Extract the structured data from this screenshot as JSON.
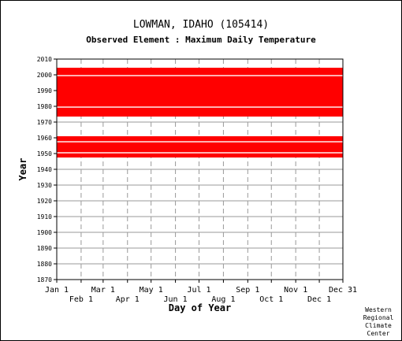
{
  "chart_data": {
    "type": "heatmap",
    "title": "LOWMAN, IDAHO   (105414)",
    "subtitle": "Observed Element : Maximum Daily Temperature",
    "xlabel": "Day of Year",
    "ylabel": "Year",
    "x_ticks_upper": [
      "Jan 1",
      "Mar 1",
      "May 1",
      "Jul 1",
      "Sep 1",
      "Nov 1",
      "Dec 31"
    ],
    "x_ticks_lower": [
      "Feb 1",
      "Apr 1",
      "Jun 1",
      "Aug 1",
      "Oct 1",
      "Dec 1"
    ],
    "x_tick_days_upper": [
      1,
      60,
      121,
      182,
      244,
      305,
      365
    ],
    "x_tick_days_lower": [
      32,
      91,
      152,
      213,
      274,
      335
    ],
    "xlim": [
      1,
      365
    ],
    "ylim": [
      1870,
      2010
    ],
    "y_ticks": [
      1870,
      1880,
      1890,
      1900,
      1910,
      1920,
      1930,
      1940,
      1950,
      1960,
      1970,
      1980,
      1990,
      2000,
      2010
    ],
    "grid": true,
    "data_color": "#ff0000",
    "observed_periods": [
      {
        "year_start": 1947.5,
        "year_end": 1961.0,
        "day_start": 1,
        "day_end": 365
      },
      {
        "year_start": 1973.5,
        "year_end": 2004.5,
        "day_start": 1,
        "day_end": 365
      }
    ],
    "missing_years": [
      1950,
      1957,
      1979,
      1999
    ]
  },
  "credit": {
    "line1": "Western",
    "line2": "Regional",
    "line3": "Climate",
    "line4": "Center"
  }
}
